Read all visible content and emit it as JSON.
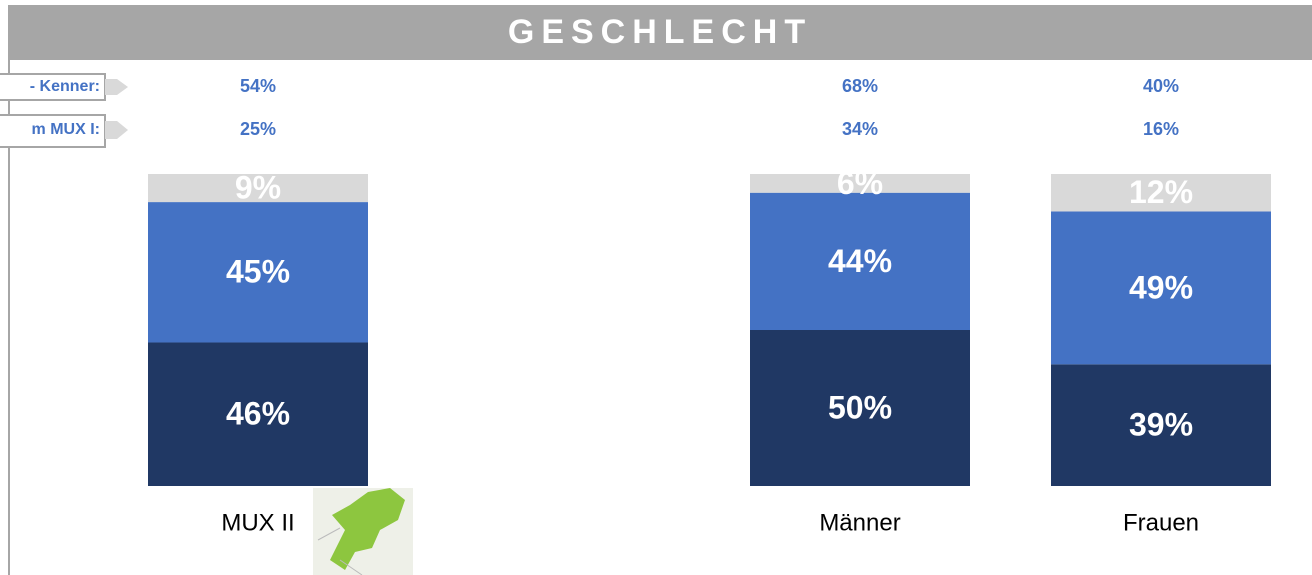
{
  "chart_data": {
    "type": "bar",
    "stacked": true,
    "title": "GESCHLECHT",
    "categories": [
      "MUX II",
      null,
      "Männer",
      "Frauen"
    ],
    "series": [
      {
        "color": "#203864",
        "values": [
          46,
          null,
          50,
          39
        ],
        "value_labels": [
          "46%",
          null,
          "50%",
          "39%"
        ]
      },
      {
        "color": "#4472c4",
        "values": [
          45,
          null,
          44,
          49
        ],
        "value_labels": [
          "45%",
          null,
          "44%",
          "49%"
        ]
      },
      {
        "color": "#d9d9d9",
        "values": [
          9,
          null,
          6,
          12
        ],
        "value_labels": [
          "9%",
          null,
          "6%",
          "12%"
        ]
      }
    ],
    "ylim": [
      0,
      100
    ],
    "rows": [
      {
        "label": "- Kenner:",
        "values": [
          54,
          null,
          68,
          40
        ],
        "value_labels": [
          "54%",
          null,
          "68%",
          "40%"
        ]
      },
      {
        "label": "m MUX I:",
        "values": [
          25,
          null,
          34,
          16
        ],
        "value_labels": [
          "25%",
          null,
          "34%",
          "16%"
        ]
      }
    ]
  }
}
